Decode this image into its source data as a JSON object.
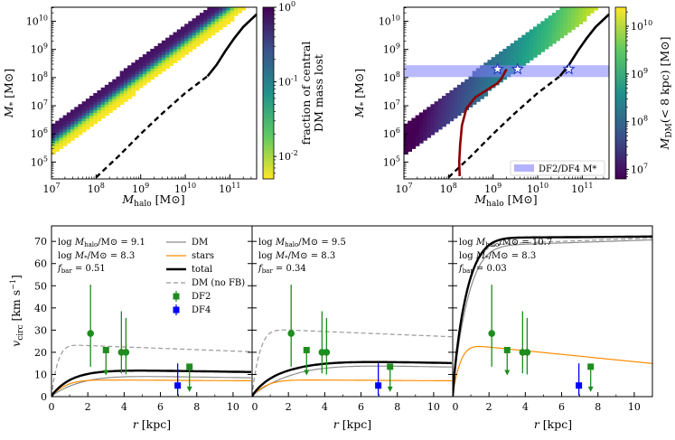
{
  "chart_data": [
    {
      "type": "heatmap",
      "panel": "top-left",
      "xlabel": "M_halo [M⊙]",
      "ylabel": "M* [M⊙]",
      "x_ticks": [
        "10^7",
        "10^8",
        "10^9",
        "10^10",
        "10^11"
      ],
      "y_ticks": [
        "10^5",
        "10^6",
        "10^7",
        "10^8",
        "10^9",
        "10^10"
      ],
      "xlim_log": [
        7,
        11.6
      ],
      "ylim_log": [
        4.4,
        10.5
      ],
      "colorbar": {
        "label_line1": "fraction of central",
        "label_line2": "DM mass lost",
        "ticks": [
          "10^0",
          "10^-1",
          "10^-2"
        ],
        "scale": "log",
        "range": [
          0.005,
          1
        ]
      },
      "relation_solid_logx": [
        10.5,
        10.7,
        10.9,
        11.1,
        11.3,
        11.6
      ],
      "relation_solid_logy": [
        8.05,
        8.45,
        8.95,
        9.4,
        9.8,
        10.25
      ],
      "relation_dashed_logx": [
        8.0,
        8.5,
        9.0,
        9.5,
        10.0,
        10.5
      ],
      "relation_dashed_logy": [
        4.45,
        5.2,
        6.0,
        6.75,
        7.45,
        8.05
      ]
    },
    {
      "type": "heatmap",
      "panel": "top-right",
      "xlabel": "M_halo [M⊙]",
      "ylabel": "M* [M⊙]",
      "x_ticks": [
        "10^7",
        "10^8",
        "10^9",
        "10^10",
        "10^11"
      ],
      "y_ticks": [
        "10^5",
        "10^6",
        "10^7",
        "10^8",
        "10^9",
        "10^10"
      ],
      "colorbar": {
        "label": "M_DM(< 8 kpc) [M⊙]",
        "ticks": [
          "10^10",
          "10^9",
          "10^8",
          "10^7"
        ],
        "scale": "log",
        "range": [
          6.8,
          10.4
        ]
      },
      "band_logy": [
        8.02,
        8.44
      ],
      "band_label": "DF2/DF4 M*",
      "stars_logx": [
        9.1,
        9.55,
        10.7
      ],
      "star_logy": 8.3,
      "track_logx": [
        8.25,
        8.24,
        8.26,
        8.3,
        8.4,
        8.6,
        8.9,
        9.1,
        9.2,
        9.3
      ],
      "track_logy": [
        4.5,
        5.0,
        5.6,
        6.3,
        6.9,
        7.3,
        7.6,
        7.8,
        8.0,
        8.3
      ]
    },
    {
      "type": "line",
      "panel": "bottom-left",
      "xlabel": "r [kpc]",
      "ylabel": "v_circ [km s^-1]",
      "xlim": [
        0,
        11
      ],
      "ylim": [
        0,
        77
      ],
      "x_ticks": [
        "0",
        "2",
        "4",
        "6",
        "8",
        "10"
      ],
      "y_ticks": [
        "0",
        "10",
        "20",
        "30",
        "40",
        "50",
        "60",
        "70"
      ],
      "annotations": [
        "log M_halo/M⊙ = 9.1",
        "log M*/M⊙ = 8.3",
        "f_bar = 0.51"
      ],
      "legend": [
        "DM",
        "stars",
        "total",
        "DM (no FB)",
        "DF2",
        "DF4"
      ],
      "curves": {
        "v_dm": 9.5,
        "rs_dm": 2.2,
        "v_st": 7.6,
        "rs_st": 1.1,
        "v_nofb": 23.5,
        "rs_nofb": 0.5,
        "dm_decline": 0.012
      }
    },
    {
      "type": "line",
      "panel": "bottom-middle",
      "xlabel": "r [kpc]",
      "xlim": [
        0,
        11
      ],
      "ylim": [
        0,
        77
      ],
      "x_ticks": [
        "0",
        "2",
        "4",
        "6",
        "8",
        "10"
      ],
      "annotations": [
        "log M_halo/M⊙ = 9.5",
        "log M*/M⊙ = 8.3",
        "f_bar = 0.34"
      ],
      "curves": {
        "v_dm": 14.5,
        "rs_dm": 3.0,
        "v_st": 7.6,
        "rs_st": 1.1,
        "v_nofb": 30.5,
        "rs_nofb": 0.6,
        "dm_decline": 0.01
      }
    },
    {
      "type": "line",
      "panel": "bottom-right",
      "xlabel": "r [kpc]",
      "xlim": [
        0,
        11
      ],
      "ylim": [
        0,
        77
      ],
      "x_ticks": [
        "0",
        "2",
        "4",
        "6",
        "8",
        "10"
      ],
      "annotations": [
        "log M_halo/M⊙ = 10.7",
        "log M*/M⊙ = 8.3",
        "f_bar = 0.03"
      ],
      "curves": {
        "v_dm": 68,
        "rs_dm": 1.2,
        "v_st": 23.5,
        "rs_st": 0.6,
        "v_nofb": 68.5,
        "rs_nofb": 1.0,
        "dm_decline": -0.004,
        "stars_decline": 0.035
      }
    }
  ],
  "observations": {
    "DF2": [
      {
        "r": 2.15,
        "v": 28.5,
        "lo": 13.5,
        "hi": 50.5
      },
      {
        "r": 3.0,
        "v": 21.0,
        "upper_limit": true
      },
      {
        "r": 3.85,
        "v": 20.0,
        "lo": 10.5,
        "hi": 38.5
      },
      {
        "r": 4.1,
        "v": 20.0,
        "lo": 10.0,
        "hi": 35.5
      },
      {
        "r": 7.6,
        "v": 13.5,
        "upper_limit": true
      }
    ],
    "DF4": [
      {
        "r": 6.95,
        "v": 5.0,
        "lo": 0.5,
        "hi": 15.0
      }
    ]
  },
  "colors": {
    "dm": "#8c8c8c",
    "stars": "#ff8c00",
    "total": "#000000",
    "nofb": "#999999",
    "df2": "#1e8c1e",
    "df4": "#0000ff",
    "band": "#7f7fff",
    "track": "#8b0000"
  },
  "labels": {
    "xlabel_halo": "M",
    "xlabel_halo_sub": "halo",
    "xlabel_unit": " [M⊙]",
    "ylabel_star": "M",
    "ylabel_star_sub": "*",
    "ylabel_unit": " [M⊙]",
    "cbar2_label": "M",
    "cbar2_sub": "DM",
    "cbar2_rest": "(< 8 kpc) [M⊙]",
    "vlabel": "v",
    "vlabel_sub": "circ",
    "vlabel_unit": " [km s",
    "vlabel_exp": "−1",
    "vlabel_close": "]",
    "rlabel": "r",
    "rlabel_unit": " [kpc]"
  }
}
